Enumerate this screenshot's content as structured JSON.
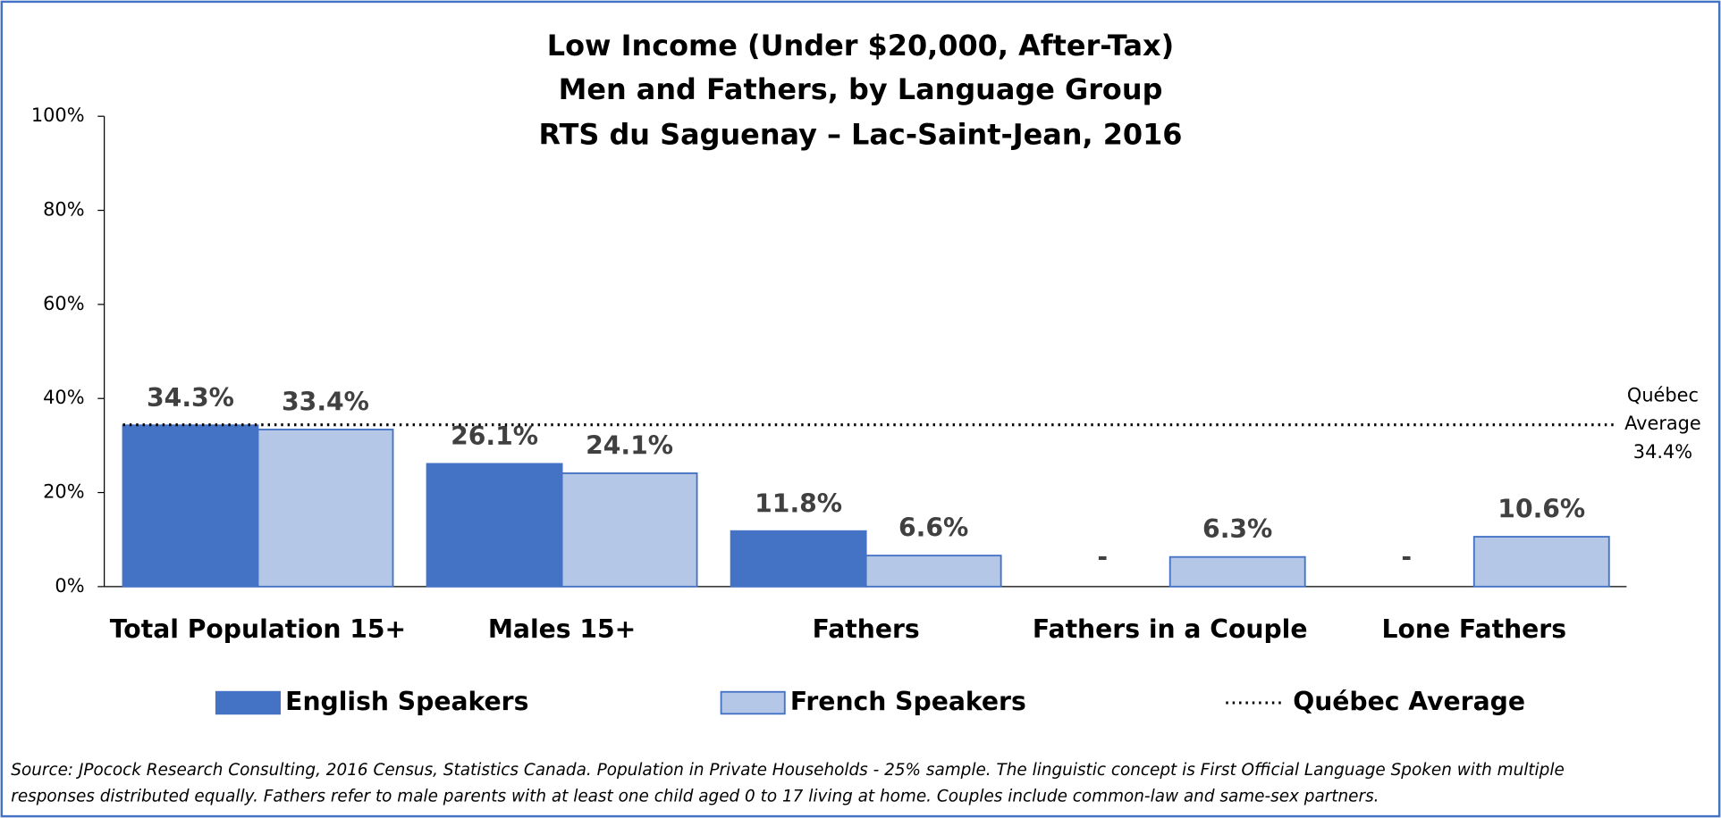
{
  "chart_data": {
    "type": "bar",
    "title": [
      "Low Income (Under $20,000, After-Tax)",
      "Men and Fathers, by Language Group",
      "RTS du Saguenay – Lac-Saint-Jean, 2016"
    ],
    "categories": [
      "Total Population 15+",
      "Males 15+",
      "Fathers",
      "Fathers in a Couple",
      "Lone Fathers"
    ],
    "series": [
      {
        "name": "English Speakers",
        "color": "#4472c4",
        "values": [
          34.3,
          26.1,
          11.8,
          null,
          null
        ],
        "value_labels": [
          "34.3%",
          "26.1%",
          "11.8%",
          "-",
          "-"
        ]
      },
      {
        "name": "French Speakers",
        "color": "#b4c7e7",
        "values": [
          33.4,
          24.1,
          6.6,
          6.3,
          10.6
        ],
        "value_labels": [
          "33.4%",
          "24.1%",
          "6.6%",
          "6.3%",
          "10.6%"
        ]
      }
    ],
    "reference_line": {
      "name": "Québec Average",
      "value": 34.4,
      "label": [
        "Québec",
        "Average",
        "34.4%"
      ]
    },
    "ylim": [
      0,
      100
    ],
    "yticks": [
      {
        "value": 0,
        "label": "0%"
      },
      {
        "value": 20,
        "label": "20%"
      },
      {
        "value": 40,
        "label": "40%"
      },
      {
        "value": 60,
        "label": "60%"
      },
      {
        "value": 80,
        "label": "80%"
      },
      {
        "value": 100,
        "label": "100%"
      }
    ],
    "legend": "bottom",
    "source": [
      "Source: JPocock Research Consulting, 2016 Census, Statistics Canada. Population in Private Households - 25% sample. The linguistic concept is First Official Language Spoken with multiple",
      "responses distributed equally. Fathers refer to male parents with at least one child aged 0 to 17 living at home. Couples include common-law and same-sex partners."
    ]
  }
}
